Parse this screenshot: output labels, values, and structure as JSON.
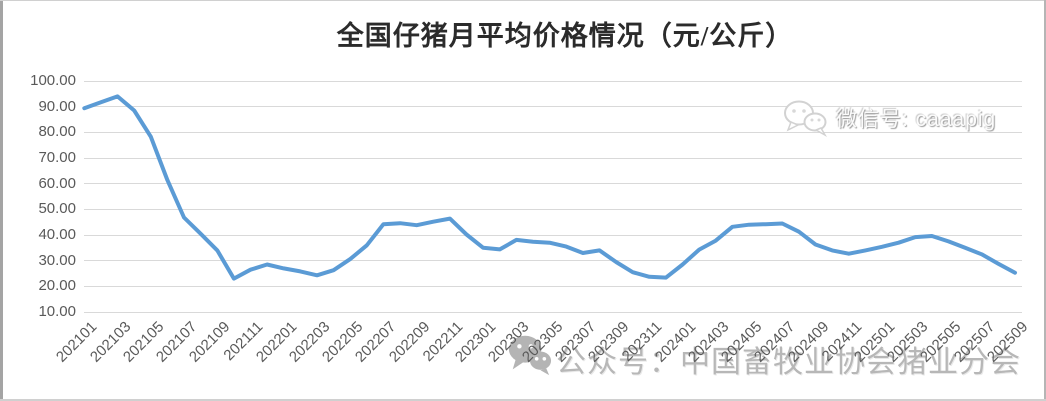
{
  "chart_data": {
    "type": "line",
    "title": "全国仔猪月平均价格情况（元/公斤）",
    "xlabel": "",
    "ylabel": "",
    "ylim": [
      10,
      100
    ],
    "grid": true,
    "legend": "none",
    "line_color": "#5B9BD5",
    "gridline_color": "#d9d9d9",
    "axis_text_color": "#595959",
    "categories": [
      "202101",
      "202102",
      "202103",
      "202104",
      "202105",
      "202106",
      "202107",
      "202108",
      "202109",
      "202110",
      "202111",
      "202112",
      "202201",
      "202202",
      "202203",
      "202204",
      "202205",
      "202206",
      "202207",
      "202208",
      "202209",
      "202210",
      "202211",
      "202212",
      "202301",
      "202302",
      "202303",
      "202304",
      "202305",
      "202306",
      "202307",
      "202308",
      "202309",
      "202310",
      "202311",
      "202312",
      "202401",
      "202402",
      "202403",
      "202404",
      "202405",
      "202406",
      "202407",
      "202408",
      "202409",
      "202410",
      "202411",
      "202412",
      "202501",
      "202502",
      "202503",
      "202504",
      "202505",
      "202506",
      "202507",
      "202508",
      "202509"
    ],
    "values": [
      89.4,
      91.7,
      94.0,
      88.5,
      78.3,
      61.4,
      46.8,
      40.5,
      34.0,
      23.0,
      26.5,
      28.5,
      27.0,
      25.8,
      24.3,
      26.3,
      30.6,
      36.0,
      44.2,
      44.6,
      43.8,
      45.2,
      46.4,
      40.2,
      35.0,
      34.4,
      38.1,
      37.4,
      37.0,
      35.5,
      33.0,
      34.0,
      29.5,
      25.5,
      23.7,
      23.4,
      28.5,
      34.3,
      37.8,
      43.2,
      44.0,
      44.2,
      44.5,
      41.3,
      36.3,
      34.0,
      32.7,
      34.0,
      35.4,
      37.0,
      39.2,
      39.6,
      37.5,
      35.0,
      32.5,
      28.8,
      25.3
    ],
    "x_tick_labels": [
      "202101",
      "202103",
      "202105",
      "202107",
      "202109",
      "202111",
      "202201",
      "202203",
      "202205",
      "202207",
      "202209",
      "202211",
      "202301",
      "202303",
      "202305",
      "202307",
      "202309",
      "202311",
      "202401",
      "202403",
      "202405",
      "202407",
      "202409",
      "202411",
      "202501",
      "202503",
      "202505",
      "202507",
      "202509"
    ],
    "y_tick_labels": [
      "100.00",
      "90.00",
      "80.00",
      "70.00",
      "60.00",
      "50.00",
      "40.00",
      "30.00",
      "20.00",
      "10.00"
    ]
  },
  "watermarks": {
    "top_right": {
      "icon": "wechat-icon",
      "text": "微信号: caaapig"
    },
    "bottom": {
      "icon": "wechat-icon",
      "text": "公众号：中国畜牧业协会猪业分会"
    }
  }
}
